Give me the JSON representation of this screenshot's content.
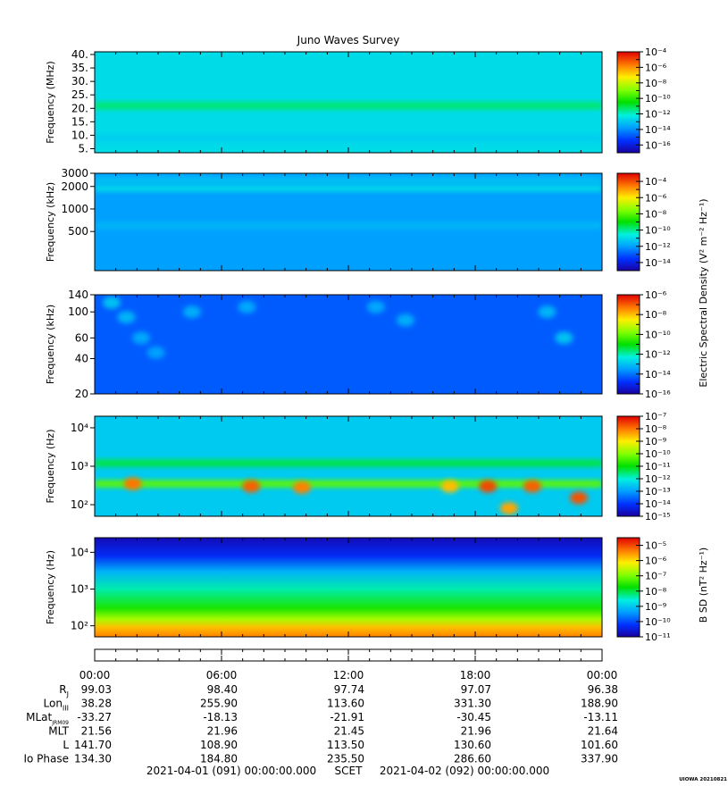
{
  "title": "Juno Waves Survey",
  "chart_data": [
    {
      "type": "heatmap",
      "name": "panel-1",
      "ylabel": "Frequency (MHz)",
      "yscale": "linear",
      "ylim": [
        3.5,
        41
      ],
      "ytick_values": [
        5,
        10,
        15,
        20,
        25,
        30,
        35,
        40
      ],
      "ytick_labels": [
        "5.",
        "10.",
        "15.",
        "20.",
        "25.",
        "30.",
        "35.",
        "40."
      ],
      "colorbar": {
        "scale": "log",
        "min_exp": -17,
        "max_exp": -4,
        "tick_exps": [
          -16,
          -14,
          -12,
          -10,
          -8,
          -6,
          -4
        ]
      },
      "background_level": -12.6,
      "bands": [
        {
          "at": 21,
          "level": -11.3
        },
        {
          "at": 9,
          "level": -12.9
        }
      ]
    },
    {
      "type": "heatmap",
      "name": "panel-2",
      "ylabel": "Frequency (kHz)",
      "yscale": "log",
      "ylim": [
        150,
        3000
      ],
      "ytick_values": [
        500,
        1000,
        2000,
        3000
      ],
      "ytick_labels": [
        "500",
        "1000",
        "2000",
        "3000"
      ],
      "colorbar": {
        "scale": "log",
        "min_exp": -15,
        "max_exp": -3,
        "tick_exps": [
          -14,
          -12,
          -10,
          -8,
          -6,
          -4
        ]
      },
      "background_level": -12.0,
      "bands": [
        {
          "at": 1900,
          "level": -11.0
        },
        {
          "at": 2400,
          "level": -11.4
        },
        {
          "at": 600,
          "level": -11.6
        }
      ]
    },
    {
      "type": "heatmap",
      "name": "panel-3",
      "ylabel": "Frequency (kHz)",
      "yscale": "log",
      "ylim": [
        20,
        140
      ],
      "ytick_values": [
        20,
        40,
        60,
        100,
        140
      ],
      "ytick_labels": [
        "20",
        "40",
        "60",
        "100",
        "140"
      ],
      "colorbar": {
        "scale": "log",
        "min_exp": -16,
        "max_exp": -6,
        "tick_exps": [
          -16,
          -14,
          -12,
          -10,
          -8,
          -6
        ]
      },
      "background_level": -14.3,
      "bursts": [
        {
          "t": 0.8,
          "f": 120,
          "level": -13.0
        },
        {
          "t": 1.5,
          "f": 90,
          "level": -13.2
        },
        {
          "t": 2.2,
          "f": 60,
          "level": -13.4
        },
        {
          "t": 2.9,
          "f": 45,
          "level": -13.5
        },
        {
          "t": 4.6,
          "f": 100,
          "level": -13.3
        },
        {
          "t": 7.2,
          "f": 110,
          "level": -13.4
        },
        {
          "t": 13.3,
          "f": 110,
          "level": -13.4
        },
        {
          "t": 14.7,
          "f": 85,
          "level": -13.3
        },
        {
          "t": 21.4,
          "f": 100,
          "level": -13.2
        },
        {
          "t": 22.2,
          "f": 60,
          "level": -13.0
        }
      ]
    },
    {
      "type": "heatmap",
      "name": "panel-4",
      "ylabel": "Frequency (Hz)",
      "yscale": "log",
      "ylim": [
        50,
        20000
      ],
      "ytick_values": [
        100,
        1000,
        10000
      ],
      "ytick_labels": [
        "10²",
        "10³",
        "10⁴"
      ],
      "colorbar": {
        "scale": "log",
        "min_exp": -15,
        "max_exp": -7,
        "tick_exps": [
          -15,
          -14,
          -13,
          -12,
          -11,
          -10,
          -9,
          -8,
          -7
        ]
      },
      "background_level": -12.5,
      "bands": [
        {
          "at": 1200,
          "level": -11.3
        },
        {
          "at": 350,
          "level": -10.3
        }
      ],
      "bursts": [
        {
          "t": 1.8,
          "f": 350,
          "level": -8.0
        },
        {
          "t": 7.4,
          "f": 300,
          "level": -7.8
        },
        {
          "t": 9.8,
          "f": 280,
          "level": -8.1
        },
        {
          "t": 16.8,
          "f": 300,
          "level": -8.6
        },
        {
          "t": 18.6,
          "f": 300,
          "level": -7.6
        },
        {
          "t": 20.7,
          "f": 300,
          "level": -7.8
        },
        {
          "t": 19.6,
          "f": 80,
          "level": -8.4
        },
        {
          "t": 22.9,
          "f": 150,
          "level": -7.7
        }
      ]
    },
    {
      "type": "heatmap",
      "name": "panel-5",
      "ylabel": "Frequency (Hz)",
      "yscale": "log",
      "ylim": [
        50,
        25000
      ],
      "ytick_values": [
        100,
        1000,
        10000
      ],
      "ytick_labels": [
        "10²",
        "10³",
        "10⁴"
      ],
      "colorbar": {
        "scale": "log",
        "min_exp": -11,
        "max_exp": -4.5,
        "tick_exps": [
          -11,
          -10,
          -9,
          -8,
          -7,
          -6,
          -5
        ]
      },
      "background_level": -9.5,
      "spectrum": [
        {
          "f": 25000,
          "level": -10.8
        },
        {
          "f": 8000,
          "level": -10.3
        },
        {
          "f": 3000,
          "level": -9.2
        },
        {
          "f": 1000,
          "level": -8.4
        },
        {
          "f": 300,
          "level": -7.6
        },
        {
          "f": 150,
          "level": -6.7
        },
        {
          "f": 90,
          "level": -5.8
        },
        {
          "f": 50,
          "level": -5.4
        }
      ]
    }
  ],
  "colorbar_labels": {
    "electric": "Electric Spectral Density (V² m⁻² Hz⁻¹)",
    "magnetic": "B SD (nT² Hz⁻¹)"
  },
  "time_axis": {
    "xlim_hours": [
      0,
      24
    ],
    "tick_hours": [
      0,
      6,
      12,
      18,
      24
    ],
    "labels": [
      "00:00",
      "06:00",
      "12:00",
      "18:00",
      "00:00"
    ]
  },
  "ephemeris": [
    {
      "label": "R",
      "sub": "J",
      "values": [
        "99.03",
        "98.40",
        "97.74",
        "97.07",
        "96.38"
      ]
    },
    {
      "label": "Lon",
      "sub": "III",
      "values": [
        "38.28",
        "255.90",
        "113.60",
        "331.30",
        "188.90"
      ]
    },
    {
      "label": "MLat",
      "sub": "JRM09",
      "values": [
        "-33.27",
        "-18.13",
        "-21.91",
        "-30.45",
        "-13.11"
      ]
    },
    {
      "label": "MLT",
      "sub": "",
      "values": [
        "21.56",
        "21.96",
        "21.45",
        "21.96",
        "21.64"
      ]
    },
    {
      "label": "L",
      "sub": "",
      "values": [
        "141.70",
        "108.90",
        "113.50",
        "130.60",
        "101.60"
      ]
    },
    {
      "label": "Io Phase",
      "sub": "",
      "values": [
        "134.30",
        "184.80",
        "235.50",
        "286.60",
        "337.90"
      ]
    }
  ],
  "footer": {
    "start": "2021-04-01 (091) 00:00:00.000",
    "scet": "SCET",
    "end": "2021-04-02 (092) 00:00:00.000",
    "stamp": "UIOWA 20210821"
  }
}
